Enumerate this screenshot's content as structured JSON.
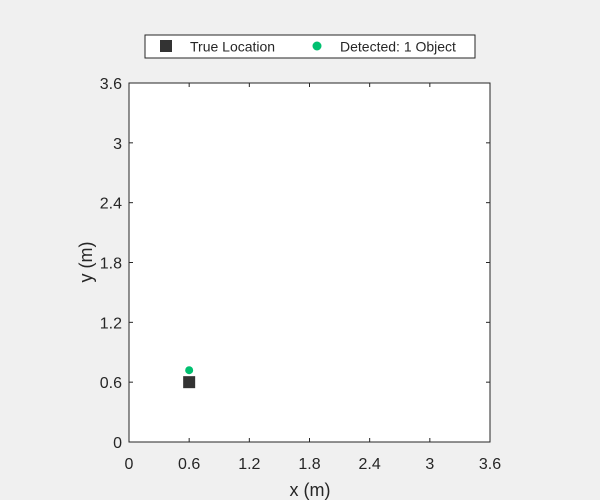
{
  "chart_data": {
    "type": "scatter",
    "title": "",
    "xlabel": "x (m)",
    "ylabel": "y (m)",
    "xlim": [
      0,
      3.6
    ],
    "ylim": [
      0,
      3.6
    ],
    "xticks": [
      0,
      0.6,
      1.2,
      1.8,
      2.4,
      3,
      3.6
    ],
    "xtick_labels": [
      "0",
      "0.6",
      "1.2",
      "1.8",
      "2.4",
      "3",
      "3.6"
    ],
    "yticks": [
      0,
      0.6,
      1.2,
      1.8,
      2.4,
      3,
      3.6
    ],
    "ytick_labels": [
      "0",
      "0.6",
      "1.2",
      "1.8",
      "2.4",
      "3",
      "3.6"
    ],
    "grid": false,
    "legend_position": "top",
    "series": [
      {
        "name": "True Location",
        "marker": "square",
        "color": "#333333",
        "points": [
          {
            "x": 0.6,
            "y": 0.6
          }
        ]
      },
      {
        "name": "Detected: 1 Object",
        "marker": "circle",
        "color": "#00c070",
        "points": [
          {
            "x": 0.6,
            "y": 0.72
          }
        ]
      }
    ]
  }
}
